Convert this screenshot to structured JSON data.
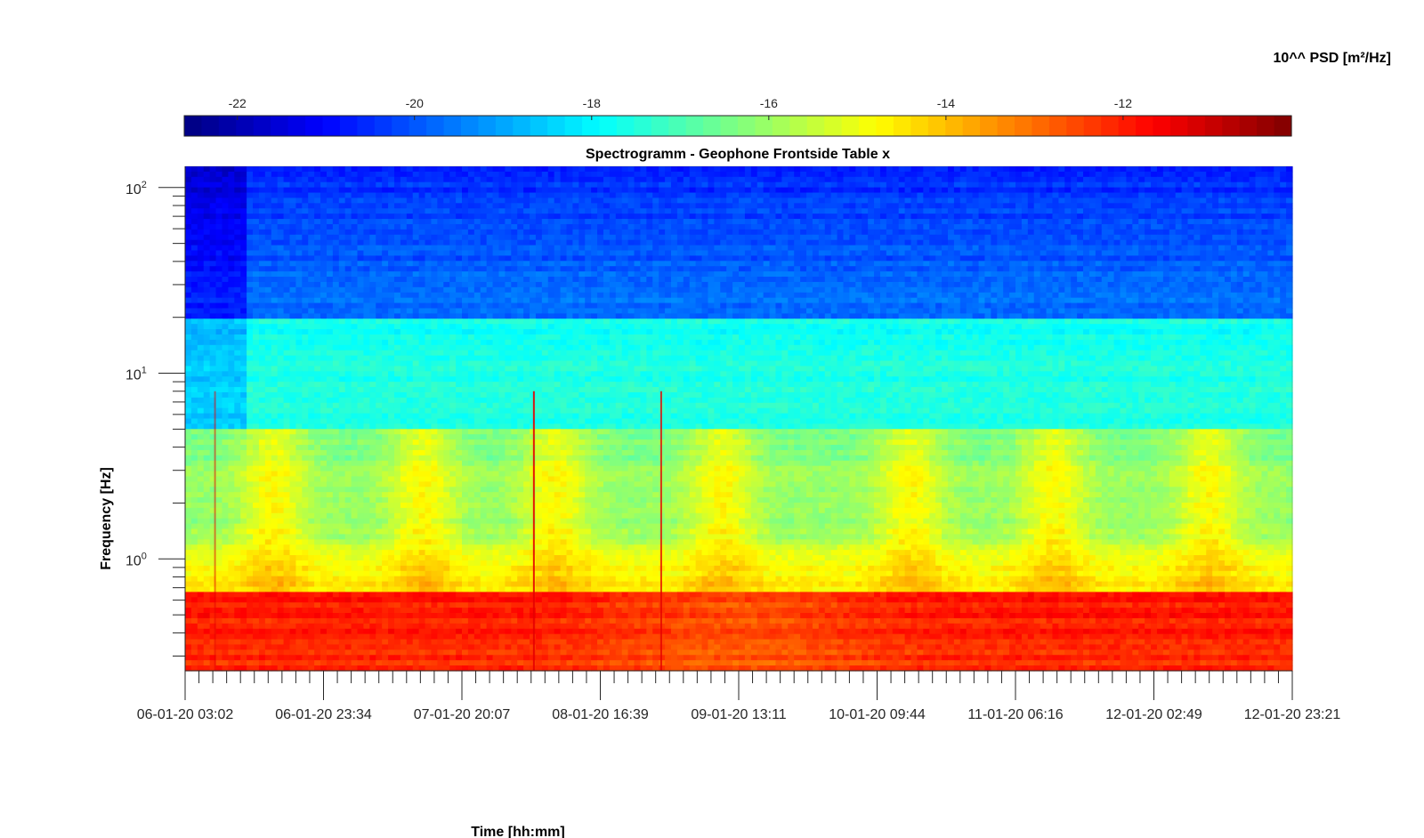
{
  "chart_data": {
    "type": "heatmap",
    "title": "Spectrogramm - Geophone Frontside Table x",
    "xlabel": "Time [hh:mm]",
    "ylabel": "Frequency [Hz]",
    "y_scale": "log",
    "ylim": [
      0.25,
      130
    ],
    "x_tick_labels": [
      "06-01-20 03:02",
      "06-01-20 23:34",
      "07-01-20 20:07",
      "08-01-20 16:39",
      "09-01-20 13:11",
      "10-01-20 09:44",
      "11-01-20 06:16",
      "12-01-20 02:49",
      "12-01-20 23:21"
    ],
    "y_ticks": [
      {
        "base": "10",
        "exp": "2"
      },
      {
        "base": "10",
        "exp": "1"
      },
      {
        "base": "10",
        "exp": "0"
      }
    ],
    "colorbar": {
      "label": "10^^ PSD [m²/Hz]",
      "ticks": [
        "-22",
        "-20",
        "-18",
        "-16",
        "-14",
        "-12"
      ],
      "tick_values": [
        -22,
        -20,
        -18,
        -16,
        -14,
        -12
      ],
      "range": [
        -22.6,
        -10.1
      ],
      "colormap": "jet",
      "placement": "top"
    },
    "grid": false,
    "description_bands": [
      {
        "freq_range": [
          20,
          130
        ],
        "level": -19.3
      },
      {
        "freq_range": [
          5,
          20
        ],
        "level": -17.6
      },
      {
        "freq_range": [
          1.2,
          5
        ],
        "level": -16.2
      },
      {
        "freq_range": [
          0.65,
          1.2
        ],
        "level": -15.0
      },
      {
        "freq_range": [
          0.25,
          0.65
        ],
        "level": -11.8
      }
    ]
  }
}
